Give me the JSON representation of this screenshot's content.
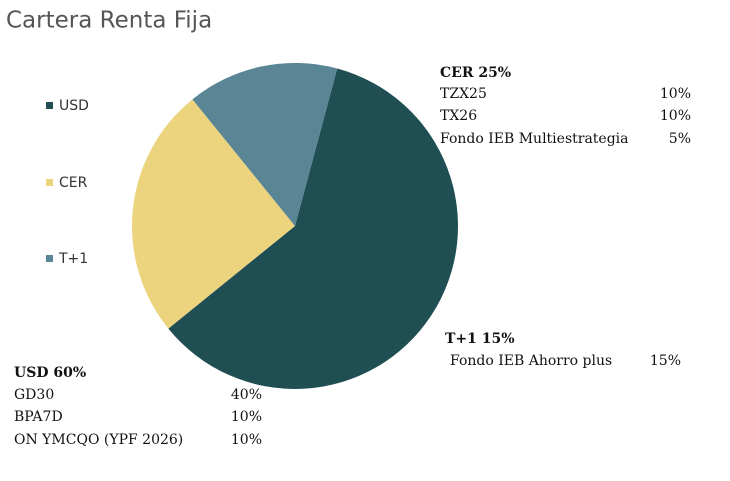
{
  "chart_data": {
    "type": "pie",
    "title": "Cartera Renta Fija",
    "categories": [
      "USD",
      "CER",
      "T+1"
    ],
    "values": [
      60,
      25,
      15
    ],
    "colors": [
      "#1f4e53",
      "#ecd47f",
      "#5a8595"
    ],
    "annotations": [
      {
        "title": "CER 25%",
        "items": [
          [
            "TZX25",
            "10%"
          ],
          [
            "TX26",
            "10%"
          ],
          [
            "Fondo IEB Multiestrategia",
            "5%"
          ]
        ]
      },
      {
        "title": "T+1 15%",
        "items": [
          [
            "Fondo IEB Ahorro plus",
            "15%"
          ]
        ]
      },
      {
        "title": "USD   60%",
        "items": [
          [
            "GD30",
            "40%"
          ],
          [
            "BPA7D",
            "10%"
          ],
          [
            "ON YMCQO (YPF 2026)",
            "10%"
          ]
        ]
      }
    ]
  }
}
